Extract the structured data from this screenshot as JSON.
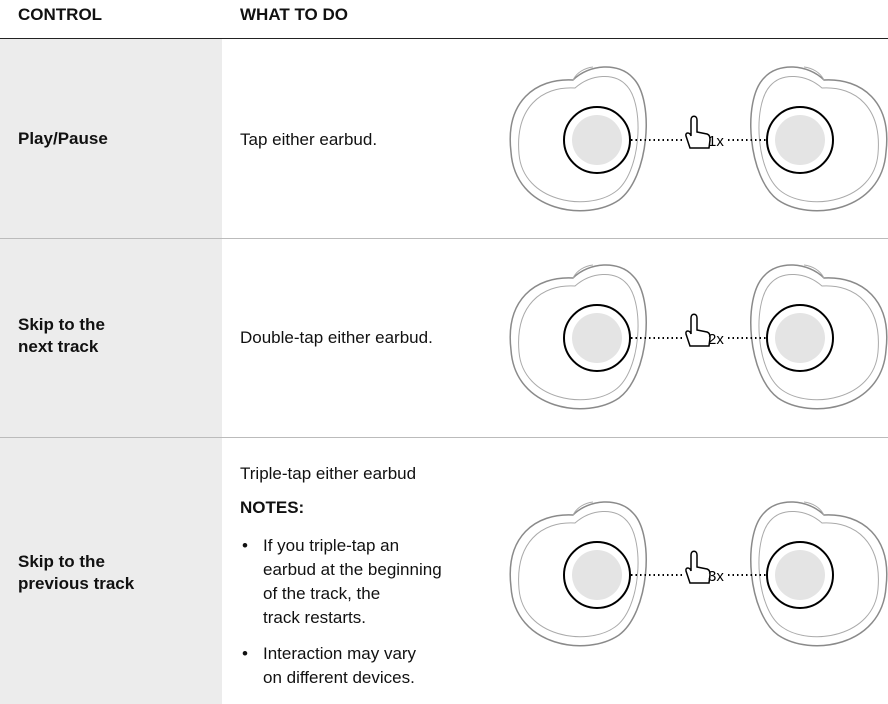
{
  "header": {
    "columns": [
      "CONTROL",
      "WHAT TO DO"
    ]
  },
  "table": {
    "rows": [
      {
        "control": [
          "Play/Pause"
        ],
        "action": "Tap either earbud.",
        "taps": "1x"
      },
      {
        "control": [
          "Skip to the",
          "next track"
        ],
        "action": "Double-tap either earbud.",
        "taps": "2x"
      },
      {
        "control": [
          "Skip to the",
          "previous track"
        ],
        "action": "Triple-tap either earbud",
        "notes_heading": "NOTES:",
        "notes": [
          [
            "If you triple-tap an",
            "earbud at the beginning",
            "of the track, the",
            "track restarts."
          ],
          [
            "Interaction may vary",
            "on different devices."
          ]
        ],
        "taps": "3x"
      }
    ]
  }
}
